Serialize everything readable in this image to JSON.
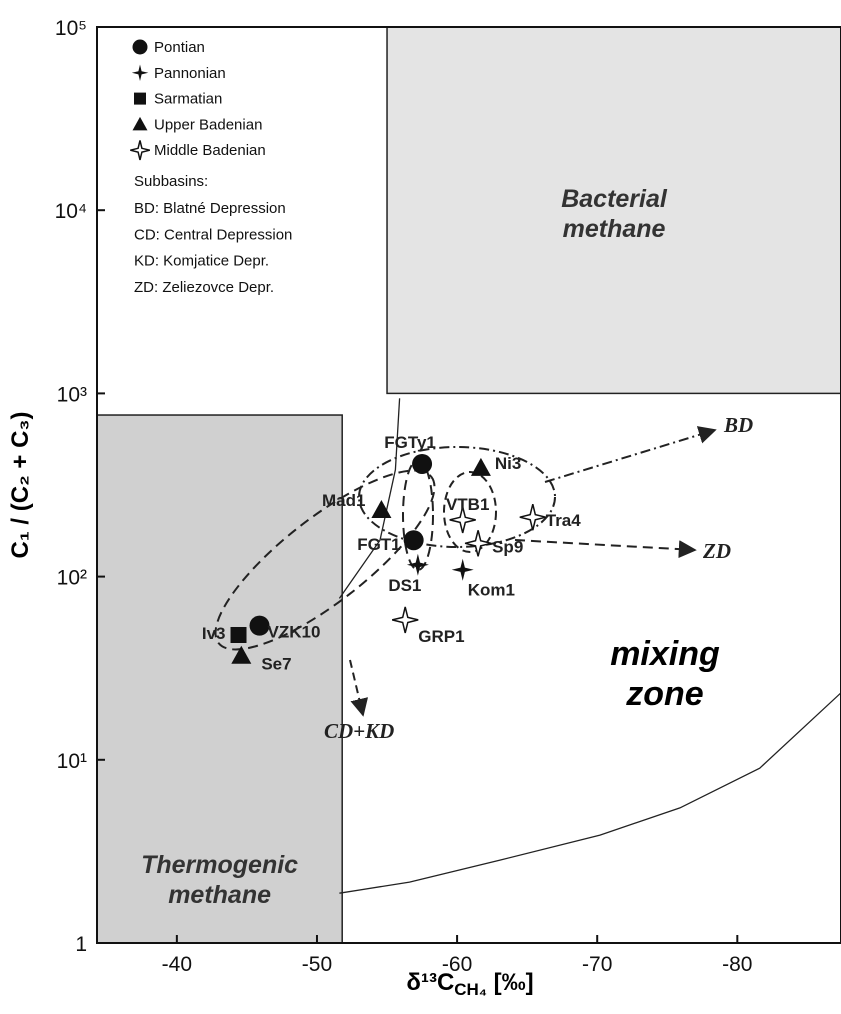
{
  "chart_data": {
    "type": "scatter",
    "xlabel": [
      "δ¹³C",
      "CH₄",
      " [‰]"
    ],
    "ylabel": "C₁ / (C₂ + C₃)",
    "xlim": [
      -34.3,
      -87.4
    ],
    "ylim": [
      1,
      100000
    ],
    "log_y": true,
    "xticks": [
      -40,
      -50,
      -60,
      -70,
      -80
    ],
    "yticks": [
      1,
      {
        "value": 10,
        "label": "10¹"
      },
      {
        "value": 100,
        "label": "10²"
      },
      {
        "value": 1000,
        "label": "10³"
      },
      {
        "value": 10000,
        "label": "10⁴"
      },
      {
        "value": 100000,
        "label": "10⁵"
      }
    ],
    "series": [
      {
        "name": "Pontian",
        "marker": "circle",
        "color": "#111111",
        "x": [
          -57.5,
          -45.9,
          -56.9
        ],
        "values": [
          412,
          54,
          158
        ],
        "labels": [
          "FGTy1",
          "VZK10",
          "FGT1"
        ]
      },
      {
        "name": "Pannonian",
        "marker": "star4",
        "color": "#111111",
        "x": [
          -57.2,
          -60.4
        ],
        "values": [
          116,
          109
        ],
        "labels": [
          "DS1",
          "Kom1"
        ]
      },
      {
        "name": "Sarmatian",
        "marker": "square",
        "color": "#111111",
        "x": [
          -44.4
        ],
        "values": [
          48
        ],
        "labels": [
          "Iv3"
        ]
      },
      {
        "name": "Upper Badenian",
        "marker": "triangle",
        "color": "#111111",
        "x": [
          -61.7,
          -54.6,
          -44.6
        ],
        "values": [
          392,
          231,
          37
        ],
        "labels": [
          "Ni3",
          "Mad1",
          "Se7"
        ]
      },
      {
        "name": "Middle Badenian",
        "marker": "openstar",
        "color": "#111111",
        "x": [
          -60.4,
          -61.5,
          -65.4,
          -56.3
        ],
        "values": [
          204,
          152,
          211,
          58
        ],
        "labels": [
          "VTB1",
          "Sp9",
          "Tra4",
          "GRP1"
        ]
      }
    ],
    "subbasins": {
      "title": "Subbasins:",
      "items": [
        "BD: Blatné Depression",
        "CD: Central Depression",
        "KD: Komjatice Depr.",
        "ZD: Zeliezovce Depr."
      ]
    },
    "regions": [
      {
        "label": [
          "Bacterial",
          "methane"
        ],
        "xlim": [
          -55,
          -87.4
        ],
        "ylim": [
          1000,
          100000
        ],
        "color": "#e4e4e4"
      },
      {
        "label": [
          "Thermogenic",
          "methane"
        ],
        "xlim": [
          -34.3,
          -51.8
        ],
        "ylim": [
          1,
          762
        ],
        "color": "#d0d0d0"
      }
    ],
    "zone_label": [
      "mixing",
      "zone"
    ],
    "curves": [
      {
        "x": [
          -55.9,
          -55.6,
          -54.5,
          -51.6
        ],
        "values": [
          940,
          383,
          158,
          76
        ]
      },
      {
        "x": [
          -51.6,
          -56.6,
          -63.1,
          -70.2,
          -75.9,
          -81.6,
          -87.4
        ],
        "values": [
          1.87,
          2.15,
          2.84,
          3.88,
          5.46,
          9.0,
          23.2
        ]
      }
    ],
    "trend_labels": [
      "BD",
      "ZD",
      "CD+KD"
    ]
  }
}
